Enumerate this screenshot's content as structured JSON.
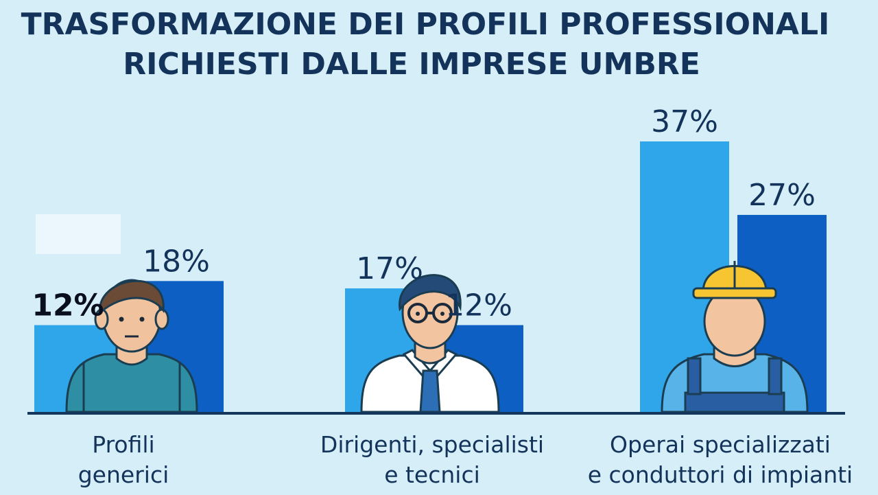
{
  "title_lines": [
    "TRASFORMAZIONE DEI PROFILI PROFESSIONALI",
    "RICHIESTI DALLE IMPRESE UMBRE"
  ],
  "colors": {
    "background": "#d6eef8",
    "bar_light": "#2fa6ea",
    "bar_dark": "#0d5fc4",
    "text": "#13335a"
  },
  "chart_data": {
    "type": "bar",
    "title": "TRASFORMAZIONE DEI PROFILI PROFESSIONALI RICHIESTI DALLE IMPRESE UMBRE",
    "categories": [
      "Profili generici",
      "Dirigenti, specialisti e tecnici",
      "Operai specializzati e conduttori di impianti"
    ],
    "category_label_lines": [
      [
        "Profili",
        "generici"
      ],
      [
        "Dirigenti, specialisti",
        "e tecnici"
      ],
      [
        "Operai specializzati",
        "e conduttori di impianti"
      ]
    ],
    "series": [
      {
        "values": [
          12,
          17,
          37
        ],
        "labels": [
          "12%",
          "17%",
          "37%"
        ],
        "color": "#2fa6ea"
      },
      {
        "values": [
          18,
          12,
          27
        ],
        "labels": [
          "18%",
          "12%",
          "27%"
        ],
        "color": "#0d5fc4"
      }
    ],
    "unit": "%",
    "ylim": [
      0,
      37
    ],
    "grid": false,
    "legend": "none",
    "icons": [
      "man-icon",
      "businessman-icon",
      "construction-worker-icon"
    ]
  }
}
